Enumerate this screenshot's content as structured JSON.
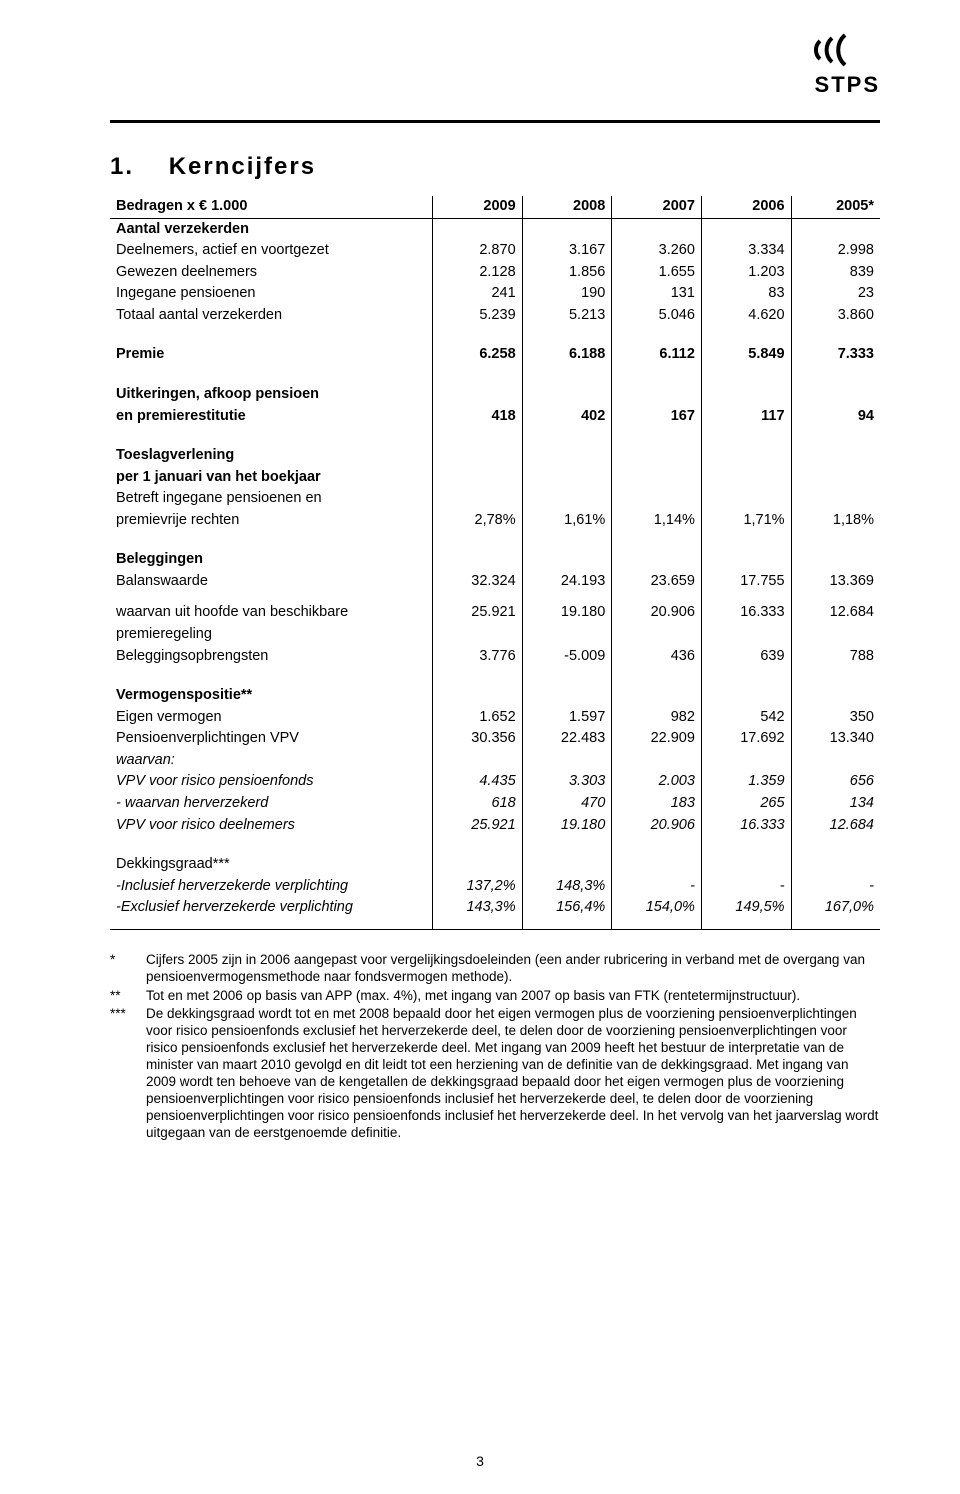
{
  "logo_text": "STPS",
  "section_number": "1.",
  "section_title": "Kerncijfers",
  "header": {
    "label": "Bedragen x € 1.000",
    "years": [
      "2009",
      "2008",
      "2007",
      "2006",
      "2005*"
    ]
  },
  "groups": [
    {
      "heading": "Aantal verzekerden",
      "rows": [
        {
          "label": "Deelnemers, actief en voortgezet",
          "vals": [
            "2.870",
            "3.167",
            "3.260",
            "3.334",
            "2.998"
          ]
        },
        {
          "label": "Gewezen deelnemers",
          "vals": [
            "2.128",
            "1.856",
            "1.655",
            "1.203",
            "839"
          ]
        },
        {
          "label": "Ingegane pensioenen",
          "vals": [
            "241",
            "190",
            "131",
            "83",
            "23"
          ]
        },
        {
          "label": "Totaal aantal verzekerden",
          "vals": [
            "5.239",
            "5.213",
            "5.046",
            "4.620",
            "3.860"
          ]
        }
      ]
    },
    {
      "rows": [
        {
          "label": "Premie",
          "vals": [
            "6.258",
            "6.188",
            "6.112",
            "5.849",
            "7.333"
          ],
          "bold": true
        }
      ]
    },
    {
      "rows": [
        {
          "label": "Uitkeringen, afkoop pensioen",
          "bold": true
        },
        {
          "label": "en premierestitutie",
          "vals": [
            "418",
            "402",
            "167",
            "117",
            "94"
          ],
          "bold": true
        }
      ]
    },
    {
      "rows": [
        {
          "label": "Toeslagverlening",
          "bold": true
        },
        {
          "label": "per 1 januari van het boekjaar",
          "bold": true
        },
        {
          "label": "Betreft ingegane pensioenen en"
        },
        {
          "label": "premievrije rechten",
          "vals": [
            "2,78%",
            "1,61%",
            "1,14%",
            "1,71%",
            "1,18%"
          ]
        }
      ]
    },
    {
      "rows": [
        {
          "label": "Beleggingen",
          "bold": true
        },
        {
          "label": "Balanswaarde",
          "vals": [
            "32.324",
            "24.193",
            "23.659",
            "17.755",
            "13.369"
          ]
        }
      ]
    },
    {
      "rows": [
        {
          "label": "waarvan uit hoofde van beschikbare",
          "vals": [
            "25.921",
            "19.180",
            "20.906",
            "16.333",
            "12.684"
          ]
        },
        {
          "label": "premieregeling"
        },
        {
          "label": "Beleggingsopbrengsten",
          "vals": [
            "3.776",
            "-5.009",
            "436",
            "639",
            "788"
          ]
        }
      ]
    },
    {
      "rows": [
        {
          "label": "Vermogenspositie**",
          "bold": true
        },
        {
          "label": "Eigen vermogen",
          "vals": [
            "1.652",
            "1.597",
            "982",
            "542",
            "350"
          ]
        },
        {
          "label": "Pensioenverplichtingen VPV",
          "vals": [
            "30.356",
            "22.483",
            "22.909",
            "17.692",
            "13.340"
          ]
        },
        {
          "label": "waarvan:",
          "italic": true
        },
        {
          "label": "VPV voor risico pensioenfonds",
          "vals": [
            "4.435",
            "3.303",
            "2.003",
            "1.359",
            "656"
          ],
          "italic": true
        },
        {
          "label": "- waarvan herverzekerd",
          "vals": [
            "618",
            "470",
            "183",
            "265",
            "134"
          ],
          "italic": true
        },
        {
          "label": "VPV voor risico deelnemers",
          "vals": [
            "25.921",
            "19.180",
            "20.906",
            "16.333",
            "12.684"
          ],
          "italic": true
        }
      ]
    },
    {
      "rows": [
        {
          "label": "Dekkingsgraad***"
        },
        {
          "label": "-Inclusief herverzekerde verplichting",
          "vals": [
            "137,2%",
            "148,3%",
            "-",
            "-",
            "-"
          ],
          "italic": true
        },
        {
          "label": "-Exclusief herverzekerde verplichting",
          "vals": [
            "143,3%",
            "156,4%",
            "154,0%",
            "149,5%",
            "167,0%"
          ],
          "italic": true
        }
      ]
    }
  ],
  "footnotes": [
    {
      "marker": "*",
      "text": "Cijfers 2005 zijn in 2006 aangepast voor vergelijkingsdoeleinden (een ander rubricering in verband met de overgang van pensioenvermogensmethode naar fondsvermogen methode)."
    },
    {
      "marker": "**",
      "text": "Tot en met 2006 op basis van APP (max. 4%), met ingang van 2007 op basis van FTK (rentetermijnstructuur)."
    },
    {
      "marker": "***",
      "text": "De dekkingsgraad wordt tot en met 2008 bepaald door het eigen vermogen plus de voorziening pensioenverplichtingen voor risico pensioenfonds exclusief het herverzekerde deel, te delen door de voorziening pensioenverplichtingen voor risico pensioenfonds exclusief het herverzekerde deel. Met ingang van 2009 heeft het bestuur de interpretatie van de minister van maart 2010 gevolgd en dit leidt tot een herziening van de definitie van de dekkingsgraad. Met ingang van 2009 wordt ten behoeve van de kengetallen de dekkingsgraad bepaald door het eigen vermogen plus de voorziening pensioenverplichtingen voor risico pensioenfonds inclusief het herverzekerde deel, te delen door de voorziening pensioenverplichtingen voor risico pensioenfonds inclusief het herverzekerde deel. In het vervolg van het jaarverslag wordt uitgegaan van de eerstgenoemde definitie."
    }
  ],
  "page_number": "3"
}
